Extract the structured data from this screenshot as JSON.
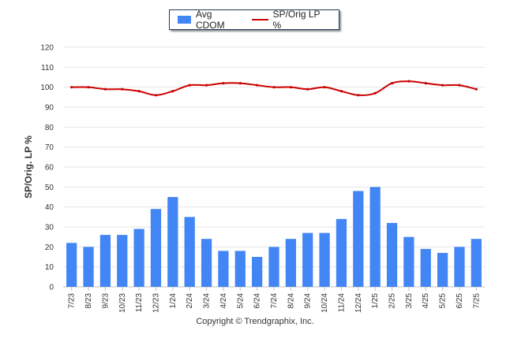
{
  "chart_data": {
    "type": "bar",
    "categories": [
      "7/23",
      "8/23",
      "9/23",
      "10/23",
      "11/23",
      "12/23",
      "1/24",
      "2/24",
      "3/24",
      "4/24",
      "5/24",
      "6/24",
      "7/24",
      "8/24",
      "9/24",
      "10/24",
      "11/24",
      "12/24",
      "1/25",
      "2/25",
      "3/25",
      "4/25",
      "5/25",
      "6/25",
      "7/25"
    ],
    "series": [
      {
        "name": "Avg CDOM",
        "type": "bar",
        "color": "#4285f4",
        "values": [
          22,
          20,
          26,
          26,
          29,
          39,
          45,
          35,
          24,
          18,
          18,
          15,
          20,
          24,
          27,
          27,
          34,
          48,
          50,
          32,
          25,
          19,
          17,
          20,
          24
        ]
      },
      {
        "name": "SP/Orig LP %",
        "type": "line",
        "color": "#cc0000",
        "values": [
          100,
          100,
          99,
          99,
          98,
          96,
          98,
          101,
          101,
          102,
          102,
          101,
          100,
          100,
          99,
          100,
          98,
          96,
          97,
          102,
          103,
          102,
          101,
          101,
          99
        ]
      }
    ],
    "ylabel": "SP/Orig. LP %",
    "yticks": [
      0,
      10,
      20,
      30,
      40,
      50,
      60,
      70,
      80,
      90,
      100,
      110,
      120
    ],
    "ylim": [
      0,
      120
    ],
    "grid": true,
    "legend_position": "top-center"
  },
  "footer": {
    "copyright": "Copyright © Trendgraphix, Inc."
  }
}
